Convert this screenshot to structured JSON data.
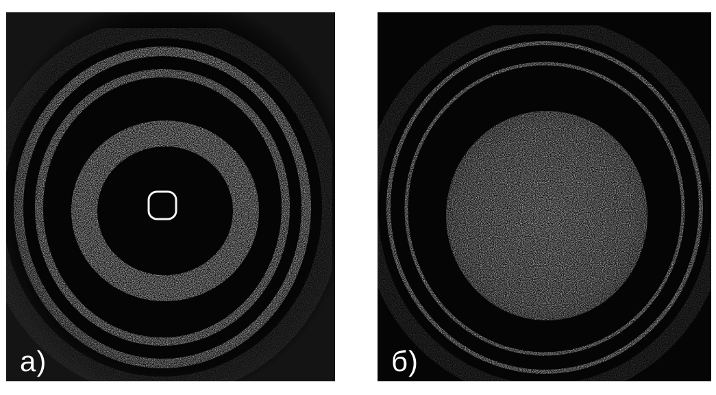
{
  "figure": {
    "panels": [
      {
        "label": "а)"
      },
      {
        "label": "б)"
      }
    ]
  }
}
